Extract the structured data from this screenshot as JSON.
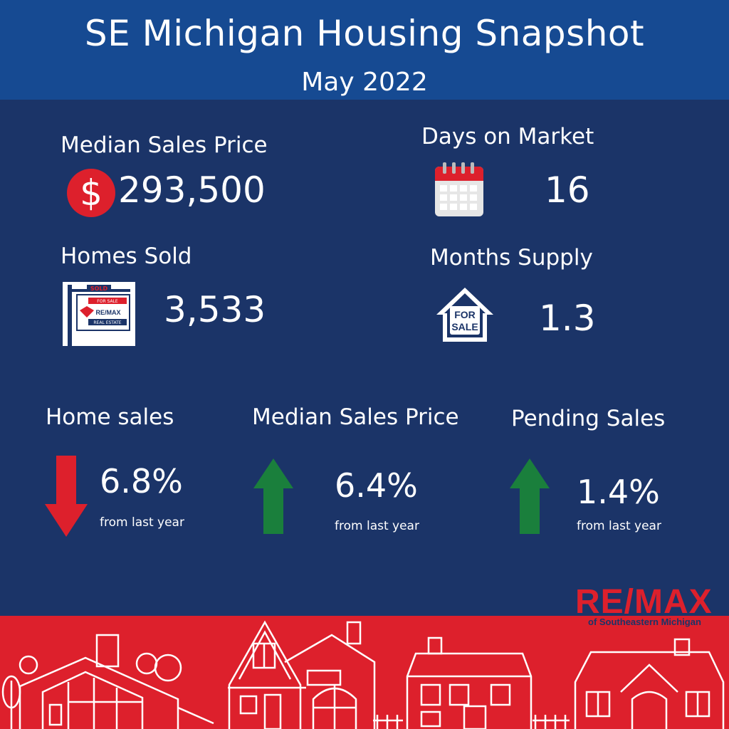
{
  "header": {
    "title": "SE Michigan Housing Snapshot",
    "subtitle": "May 2022"
  },
  "stats": {
    "median_price": {
      "label": "Median Sales Price",
      "value": "293,500",
      "icon": "dollar-icon"
    },
    "days_on_market": {
      "label": "Days on Market",
      "value": "16",
      "icon": "calendar-icon"
    },
    "homes_sold": {
      "label": "Homes Sold",
      "value": "3,533",
      "icon": "sold-sign-icon"
    },
    "months_supply": {
      "label": "Months Supply",
      "value": "1.3",
      "icon": "for-sale-house-icon"
    }
  },
  "changes": [
    {
      "label": "Home sales",
      "value": "6.8%",
      "note": "from last year",
      "direction": "down",
      "color": "#dd202c"
    },
    {
      "label": "Median Sales Price",
      "value": "6.4%",
      "note": "from last year",
      "direction": "up",
      "color": "#1a7f3c"
    },
    {
      "label": "Pending Sales",
      "value": "1.4%",
      "note": "from last year",
      "direction": "up",
      "color": "#1a7f3c"
    }
  ],
  "sign": {
    "top": "SOLD",
    "for_sale": "FOR SALE",
    "brand": "RE/MAX",
    "sub": "REAL ESTATE"
  },
  "house_sign": {
    "line1": "FOR",
    "line2": "SALE"
  },
  "logo": {
    "main": "RE/MAX",
    "sub": "of Southeastern Michigan"
  },
  "colors": {
    "background": "#1b3468",
    "header": "#164a92",
    "footer": "#dd202c",
    "up": "#1a7f3c",
    "down": "#dd202c"
  }
}
